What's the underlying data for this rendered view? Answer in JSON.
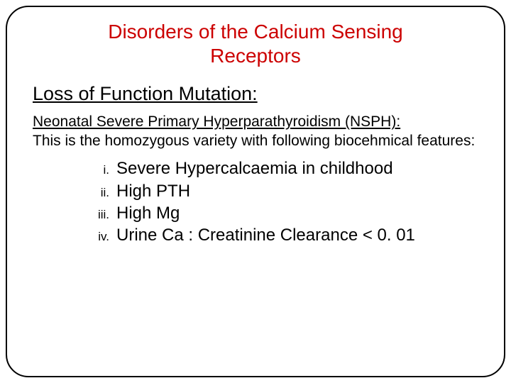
{
  "title": "Disorders of the Calcium Sensing Receptors",
  "section_heading": "Loss of Function Mutation:",
  "sub_heading": "Neonatal Severe Primary Hyperparathyroidism (NSPH):",
  "body_text": "This is the homozygous variety with following biocehmical features:",
  "list": {
    "items": [
      {
        "marker": "i.",
        "text": "Severe Hypercalcaemia in childhood"
      },
      {
        "marker": "ii.",
        "text": "High PTH"
      },
      {
        "marker": "iii.",
        "text": "High Mg"
      },
      {
        "marker": "iv.",
        "text": "Urine Ca : Creatinine Clearance < 0. 01"
      }
    ]
  },
  "colors": {
    "title_color": "#cc0000",
    "text_color": "#000000",
    "border_color": "#000000",
    "background": "#ffffff"
  },
  "typography": {
    "title_fontsize": 28,
    "section_fontsize": 27,
    "sub_fontsize": 21,
    "body_fontsize": 21,
    "list_fontsize": 24,
    "marker_fontsize": 17,
    "font_family": "Arial"
  },
  "layout": {
    "border_radius": 32,
    "border_width": 2
  }
}
